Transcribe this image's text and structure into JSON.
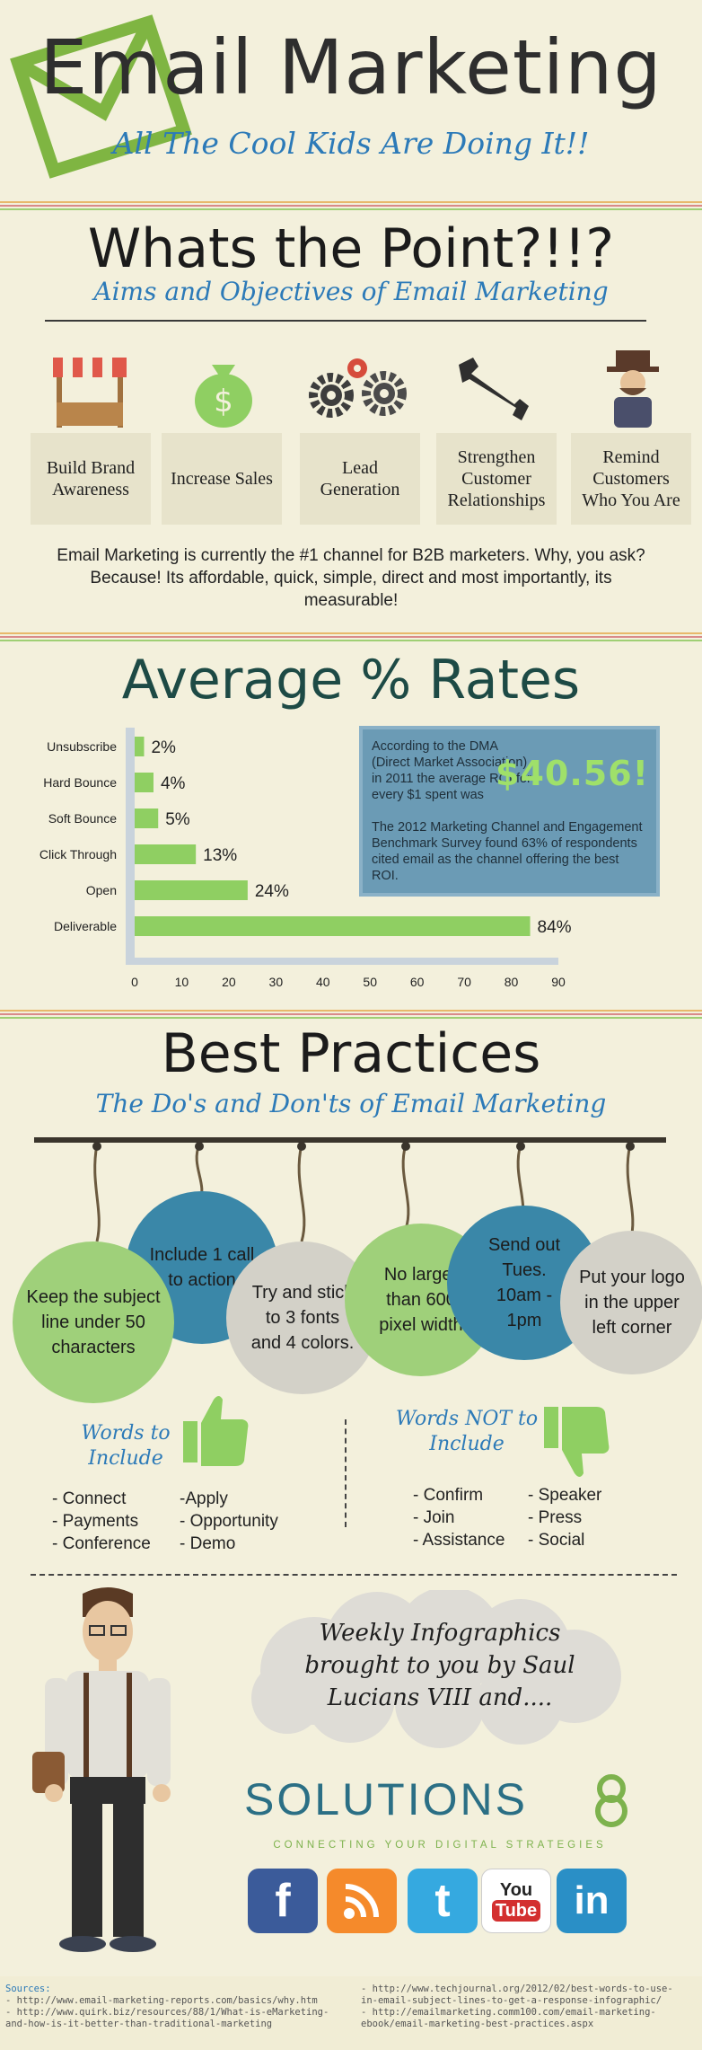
{
  "header": {
    "title": "Email Marketing",
    "tagline": "All The Cool Kids Are Doing It!!"
  },
  "aims": {
    "title": "Whats the Point?!!?",
    "subtitle": "Aims and Objectives of Email Marketing",
    "items": [
      {
        "label": "Build Brand Awareness",
        "icon": "market-stall-icon"
      },
      {
        "label": "Increase Sales",
        "icon": "money-bag-icon"
      },
      {
        "label": "Lead Generation",
        "icon": "gears-icon"
      },
      {
        "label": "Strengthen Customer Relationships",
        "icon": "wrench-icon"
      },
      {
        "label": "Remind Customers Who You Are",
        "icon": "gentleman-icon"
      }
    ],
    "text": "Email Marketing is currently the #1 channel for B2B marketers. Why, you ask? Because! Its affordable, quick, simple, direct and most importantly, its measurable!"
  },
  "rates": {
    "title": "Average % Rates",
    "roi_text": "According to the DMA (Direct Market Association) in 2011 the average ROI for every $1 spent was",
    "roi_amount": "$40.56!",
    "survey_text": "The 2012 Marketing Channel and Engagement Benchmark Survey found 63% of respondents cited email as the channel offering the best ROI."
  },
  "chart_data": {
    "type": "bar",
    "orientation": "horizontal",
    "categories": [
      "Unsubscribe",
      "Hard Bounce",
      "Soft Bounce",
      "Click Through",
      "Open",
      "Deliverable"
    ],
    "values": [
      2,
      4,
      5,
      13,
      24,
      84
    ],
    "value_labels": [
      "2%",
      "4%",
      "5%",
      "13%",
      "24%",
      "84%"
    ],
    "xlim": [
      0,
      90
    ],
    "xticks": [
      "0",
      "10",
      "20",
      "30",
      "40",
      "50",
      "60",
      "70",
      "80",
      "90"
    ],
    "bar_color": "#8fcf62"
  },
  "practices": {
    "title": "Best Practices",
    "subtitle": "The Do's and Don'ts of Email Marketing",
    "tips": [
      "Keep the subject line under 50 characters",
      "Include 1 call to action",
      "Try and stick to 3 fonts and 4 colors.",
      "No larger than 600 pixel width",
      "Send out Tues. 10am - 1pm",
      "Put your logo in the upper left corner"
    ],
    "include_title": "Words to Include",
    "include_col1": [
      "- Connect",
      "- Payments",
      "- Conference"
    ],
    "include_col2": [
      "-Apply",
      "- Opportunity",
      "- Demo"
    ],
    "exclude_title": "Words NOT to Include",
    "exclude_col1": [
      "- Confirm",
      "- Join",
      "- Assistance"
    ],
    "exclude_col2": [
      "- Speaker",
      "- Press",
      "- Social"
    ]
  },
  "footer": {
    "cloud_text": "Weekly Infographics brought to you by Saul Lucians VIII and....",
    "brand": "SOLUTIONS",
    "brand_tag": "CONNECTING YOUR DIGITAL STRATEGIES",
    "social": [
      {
        "name": "facebook",
        "glyph": "f",
        "color": "#3b5b9a"
      },
      {
        "name": "rss",
        "glyph": "rss",
        "color": "#f58a2b"
      },
      {
        "name": "twitter",
        "glyph": "t",
        "color": "#35a9e0"
      },
      {
        "name": "youtube",
        "glyph": "You Tube",
        "color": "#ffffff"
      },
      {
        "name": "linkedin",
        "glyph": "in",
        "color": "#2a8fc6"
      }
    ]
  },
  "sources": {
    "label": "Sources:",
    "left": [
      "- http://www.email-marketing-reports.com/basics/why.htm",
      "- http://www.quirk.biz/resources/88/1/What-is-eMarketing-",
      "and-how-is-it-better-than-traditional-marketing"
    ],
    "right": [
      "- http://www.techjournal.org/2012/02/best-words-to-use-",
      "in-email-subject-lines-to-get-a-response-infographic/",
      "- http://emailmarketing.comm100.com/email-marketing-",
      "ebook/email-marketing-best-practices.aspx"
    ]
  }
}
